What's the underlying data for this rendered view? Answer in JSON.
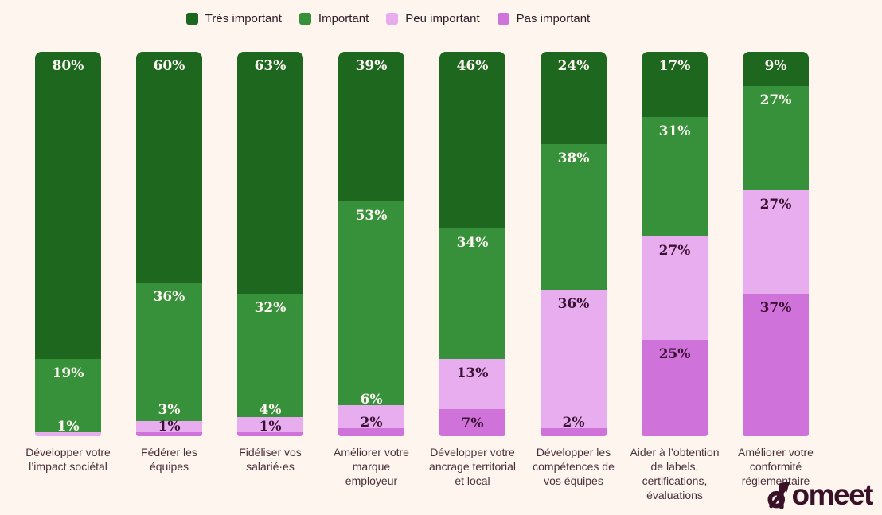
{
  "colors": {
    "background": "#fdf5ee",
    "value_label_light": "#fcf7f1",
    "value_label_dark": "#3b1133",
    "category_text": "#4b303b",
    "legend_text": "#2e1c28",
    "logo": "#3a1228"
  },
  "legend": {
    "items": [
      {
        "label": "Très important",
        "color": "#1d671f"
      },
      {
        "label": "Important",
        "color": "#37913a"
      },
      {
        "label": "Peu important",
        "color": "#e7adef"
      },
      {
        "label": "Pas important",
        "color": "#cf72d9"
      }
    ]
  },
  "chart_data": {
    "type": "bar",
    "variant": "stacked",
    "orientation": "vertical",
    "value_suffix": "%",
    "ylim": [
      0,
      100
    ],
    "grid": false,
    "legend_position": "top",
    "categories": [
      "Développer votre l’impact sociétal",
      "Fédérer les équipes",
      "Fidéliser vos salarié·es",
      "Améliorer votre marque employeur",
      "Développer votre ancrage territorial et local",
      "Développer les compétences de vos équipes",
      "Aider à l’obtention de labels, certifications, évaluations",
      "Améliorer votre conformité réglementaire"
    ],
    "categories_lines": [
      [
        "Développer votre",
        "l’impact sociétal"
      ],
      [
        "Fédérer les",
        "équipes"
      ],
      [
        "Fidéliser vos",
        "salarié·es"
      ],
      [
        "Améliorer votre",
        "marque",
        "employeur"
      ],
      [
        "Développer votre",
        "ancrage territorial",
        "et local"
      ],
      [
        "Développer les",
        "compétences de",
        "vos équipes"
      ],
      [
        "Aider à l’obtention",
        "de labels,",
        "certifications,",
        "évaluations"
      ],
      [
        "Améliorer votre",
        "conformité",
        "réglementaire"
      ]
    ],
    "series": [
      {
        "name": "Très important",
        "color": "#1d671f",
        "values": [
          80,
          60,
          63,
          39,
          46,
          24,
          17,
          9
        ]
      },
      {
        "name": "Important",
        "color": "#37913a",
        "values": [
          19,
          36,
          32,
          53,
          34,
          38,
          31,
          27
        ]
      },
      {
        "name": "Peu important",
        "color": "#e7adef",
        "values": [
          1,
          3,
          4,
          6,
          13,
          36,
          27,
          27
        ]
      },
      {
        "name": "Pas important",
        "color": "#cf72d9",
        "values": [
          0,
          1,
          1,
          2,
          7,
          2,
          25,
          37
        ]
      }
    ]
  },
  "logo": {
    "brand": "Komeet",
    "wordmark_text": "omeet"
  }
}
